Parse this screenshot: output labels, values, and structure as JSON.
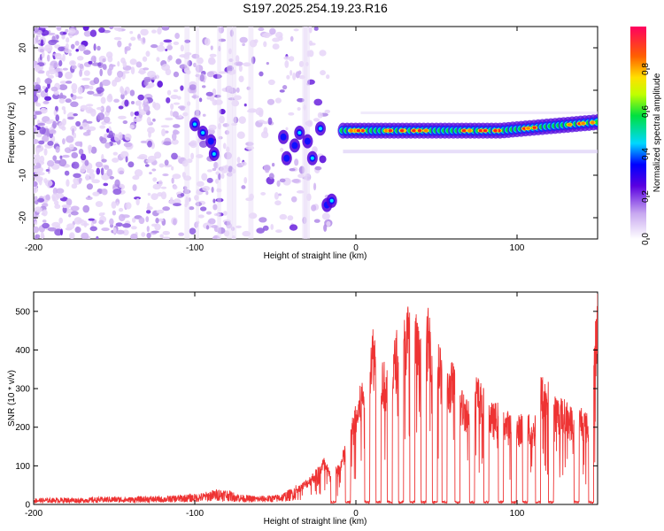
{
  "title": "S197.2025.254.19.23.R16",
  "chart_data": [
    {
      "type": "heatmap",
      "name": "spectrogram",
      "xlabel": "Height of straight line (km)",
      "ylabel": "Frequency (Hz)",
      "xlim": [
        -200,
        150
      ],
      "ylim": [
        -25,
        25
      ],
      "xticks": [
        -200,
        -100,
        0,
        100
      ],
      "yticks": [
        -20,
        -10,
        0,
        10,
        20
      ],
      "colorbar": {
        "label": "Normalized spectral amplitude",
        "range": [
          0,
          1
        ],
        "ticks": [
          0.0,
          0.2,
          0.4,
          0.6,
          0.8
        ],
        "tick_labels": [
          "0.0",
          "0.2",
          "0.4",
          "0.6",
          "0.8"
        ]
      },
      "features": [
        {
          "name": "noise-region",
          "x_range": [
            -200,
            -25
          ],
          "f_range": [
            -25,
            25
          ],
          "amplitude": 0.15
        },
        {
          "name": "streaks",
          "points": [
            [
              -100,
              2
            ],
            [
              -95,
              0
            ],
            [
              -90,
              -2
            ],
            [
              -88,
              -5
            ],
            [
              -45,
              -1
            ],
            [
              -43,
              -6
            ],
            [
              -38,
              -3
            ],
            [
              -35,
              0
            ],
            [
              -30,
              -2
            ],
            [
              -27,
              -6
            ],
            [
              -22,
              1
            ],
            [
              -18,
              -17
            ],
            [
              -15,
              -16
            ]
          ]
        },
        {
          "name": "carrier-line",
          "x_range": [
            -8,
            150
          ],
          "frequency": [
            0.5,
            2.5
          ],
          "amplitude_peak": 0.95
        }
      ]
    },
    {
      "type": "line",
      "name": "snr",
      "xlabel": "Height of straight line (km)",
      "ylabel": "SNR (10 * v/v)",
      "xlim": [
        -200,
        150
      ],
      "ylim": [
        0,
        550
      ],
      "xticks": [
        -200,
        -100,
        0,
        100
      ],
      "yticks": [
        0,
        100,
        200,
        300,
        400,
        500
      ],
      "color": "#ee3333",
      "series": [
        {
          "name": "SNR",
          "x": [
            -200,
            -190,
            -180,
            -170,
            -160,
            -150,
            -140,
            -130,
            -120,
            -110,
            -100,
            -95,
            -90,
            -85,
            -80,
            -75,
            -70,
            -60,
            -50,
            -45,
            -40,
            -35,
            -30,
            -25,
            -20,
            -15,
            -10,
            -5,
            0,
            5,
            10,
            15,
            20,
            25,
            30,
            35,
            40,
            45,
            50,
            55,
            60,
            65,
            70,
            75,
            80,
            85,
            90,
            95,
            100,
            105,
            110,
            115,
            120,
            125,
            130,
            135,
            140,
            145,
            150
          ],
          "y": [
            12,
            12,
            13,
            12,
            14,
            15,
            14,
            16,
            15,
            18,
            20,
            22,
            26,
            30,
            28,
            22,
            18,
            16,
            18,
            22,
            30,
            45,
            60,
            80,
            110,
            70,
            100,
            160,
            230,
            310,
            420,
            360,
            300,
            400,
            430,
            500,
            380,
            450,
            420,
            300,
            330,
            270,
            250,
            300,
            260,
            230,
            240,
            210,
            200,
            220,
            190,
            300,
            280,
            250,
            240,
            220,
            230,
            200,
            500
          ]
        }
      ],
      "dropouts_x": [
        -14,
        -5,
        7,
        14,
        21,
        28,
        35,
        42,
        49,
        55,
        63,
        72,
        81,
        90,
        98,
        105,
        113,
        121,
        137,
        146
      ]
    }
  ]
}
